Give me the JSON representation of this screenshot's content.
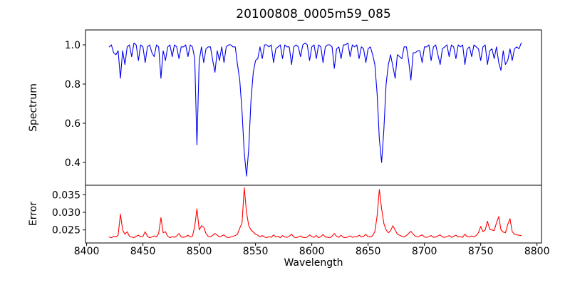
{
  "figure": {
    "background": "#ffffff",
    "spine_color": "#000000",
    "text_color": "#000000"
  },
  "x_axis": {
    "label": "Wavelength",
    "ticks": [
      8400,
      8450,
      8500,
      8550,
      8600,
      8650,
      8700,
      8750,
      8800
    ],
    "tick_labels": [
      "8400",
      "8450",
      "8500",
      "8550",
      "8600",
      "8650",
      "8700",
      "8750",
      "8800"
    ],
    "xlim": [
      8399,
      8804
    ]
  },
  "chart_data": [
    {
      "type": "line",
      "panel": "top",
      "title": "20100808_0005m59_085",
      "ylabel": "Spectrum",
      "series_name": "spectrum",
      "color": "#0000ee",
      "line_width": 1.1,
      "grid": false,
      "ylim": [
        0.2836,
        1.0764
      ],
      "yticks": [
        0.4,
        0.6,
        0.8,
        1.0
      ],
      "ytick_labels": [
        "0.4",
        "0.6",
        "0.8",
        "1.0"
      ],
      "x_start": 8420,
      "x_step": 2,
      "values": [
        0.99,
        1.0,
        0.96,
        0.95,
        0.97,
        0.83,
        0.97,
        0.9,
        0.99,
        1.0,
        0.94,
        1.01,
        1.0,
        0.92,
        1.0,
        0.99,
        0.91,
        0.99,
        1.0,
        0.96,
        0.94,
        1.0,
        0.99,
        0.83,
        0.97,
        0.92,
        0.99,
        1.0,
        0.94,
        1.0,
        0.99,
        0.93,
        0.99,
        0.99,
        1.0,
        0.94,
        1.0,
        0.99,
        0.93,
        0.49,
        0.92,
        0.99,
        0.91,
        0.98,
        0.99,
        0.99,
        0.92,
        0.86,
        0.97,
        0.92,
        0.99,
        0.91,
        0.99,
        1.0,
        1.0,
        0.99,
        0.99,
        0.9,
        0.82,
        0.66,
        0.45,
        0.33,
        0.47,
        0.72,
        0.86,
        0.92,
        0.93,
        0.99,
        0.93,
        1.0,
        1.0,
        0.99,
        1.0,
        0.91,
        0.98,
        0.99,
        1.0,
        0.93,
        1.0,
        0.99,
        0.99,
        0.9,
        0.99,
        1.0,
        0.99,
        0.94,
        1.0,
        1.01,
        1.0,
        0.92,
        0.99,
        1.0,
        0.93,
        1.0,
        0.99,
        0.91,
        0.99,
        1.0,
        1.0,
        0.99,
        0.88,
        0.98,
        0.99,
        0.93,
        1.0,
        1.0,
        1.01,
        0.94,
        1.0,
        0.99,
        1.0,
        0.93,
        0.99,
        0.98,
        0.91,
        0.98,
        0.99,
        0.95,
        0.9,
        0.75,
        0.52,
        0.4,
        0.57,
        0.8,
        0.9,
        0.95,
        0.89,
        0.83,
        0.95,
        0.94,
        0.93,
        0.99,
        0.99,
        0.92,
        0.82,
        0.96,
        0.96,
        0.97,
        0.97,
        0.91,
        0.99,
        0.99,
        1.0,
        0.92,
        0.99,
        1.0,
        0.95,
        0.9,
        0.98,
        0.99,
        1.0,
        0.94,
        1.0,
        0.99,
        0.93,
        1.0,
        0.99,
        1.0,
        0.9,
        0.98,
        0.99,
        0.94,
        1.0,
        0.99,
        0.98,
        0.92,
        0.99,
        1.0,
        0.9,
        0.97,
        0.98,
        0.93,
        0.99,
        0.91,
        0.87,
        0.97,
        0.9,
        0.92,
        0.98,
        0.92,
        0.98,
        0.99,
        0.98,
        1.01
      ]
    },
    {
      "type": "line",
      "panel": "bottom",
      "ylabel": "Error",
      "series_name": "error",
      "color": "#ff0000",
      "line_width": 1.1,
      "grid": false,
      "ylim": [
        0.0213,
        0.0377
      ],
      "yticks": [
        0.025,
        0.03,
        0.035
      ],
      "ytick_labels": [
        "0.025",
        "0.030",
        "0.035"
      ],
      "x_start": 8420,
      "x_step": 2,
      "values": [
        0.023,
        0.0228,
        0.0232,
        0.023,
        0.0235,
        0.0295,
        0.025,
        0.0238,
        0.0245,
        0.0232,
        0.023,
        0.0228,
        0.0232,
        0.0235,
        0.023,
        0.0232,
        0.0245,
        0.0232,
        0.0228,
        0.023,
        0.0233,
        0.023,
        0.024,
        0.0285,
        0.0242,
        0.0245,
        0.0232,
        0.0228,
        0.0231,
        0.0229,
        0.0233,
        0.024,
        0.023,
        0.0229,
        0.0231,
        0.0235,
        0.023,
        0.0232,
        0.026,
        0.031,
        0.025,
        0.0262,
        0.0258,
        0.024,
        0.0232,
        0.023,
        0.0235,
        0.024,
        0.0235,
        0.023,
        0.0233,
        0.0236,
        0.023,
        0.0228,
        0.023,
        0.0232,
        0.0234,
        0.0238,
        0.0255,
        0.027,
        0.037,
        0.03,
        0.0262,
        0.025,
        0.0244,
        0.0238,
        0.0235,
        0.023,
        0.0234,
        0.023,
        0.0228,
        0.0231,
        0.0229,
        0.0236,
        0.023,
        0.0232,
        0.0228,
        0.0234,
        0.023,
        0.0229,
        0.0232,
        0.0238,
        0.023,
        0.0228,
        0.023,
        0.0233,
        0.0229,
        0.0228,
        0.023,
        0.0236,
        0.0231,
        0.0229,
        0.0234,
        0.0228,
        0.0231,
        0.0237,
        0.023,
        0.0229,
        0.0228,
        0.0232,
        0.024,
        0.0232,
        0.0229,
        0.0235,
        0.0229,
        0.0228,
        0.023,
        0.0233,
        0.0229,
        0.0231,
        0.023,
        0.0235,
        0.023,
        0.0232,
        0.0237,
        0.0231,
        0.023,
        0.0234,
        0.0245,
        0.029,
        0.0365,
        0.031,
        0.0268,
        0.025,
        0.0242,
        0.0248,
        0.0262,
        0.025,
        0.0238,
        0.0235,
        0.0232,
        0.023,
        0.0234,
        0.024,
        0.0246,
        0.0238,
        0.0232,
        0.023,
        0.0233,
        0.0236,
        0.023,
        0.0229,
        0.0231,
        0.0234,
        0.0229,
        0.023,
        0.0233,
        0.0236,
        0.023,
        0.0229,
        0.0231,
        0.0234,
        0.0229,
        0.0232,
        0.0235,
        0.023,
        0.0231,
        0.0229,
        0.0238,
        0.0231,
        0.023,
        0.0233,
        0.023,
        0.0234,
        0.0242,
        0.026,
        0.0245,
        0.025,
        0.0275,
        0.0252,
        0.025,
        0.0248,
        0.027,
        0.0288,
        0.025,
        0.0244,
        0.0242,
        0.0265,
        0.0282,
        0.0245,
        0.0238,
        0.0236,
        0.0235,
        0.0234
      ]
    }
  ]
}
